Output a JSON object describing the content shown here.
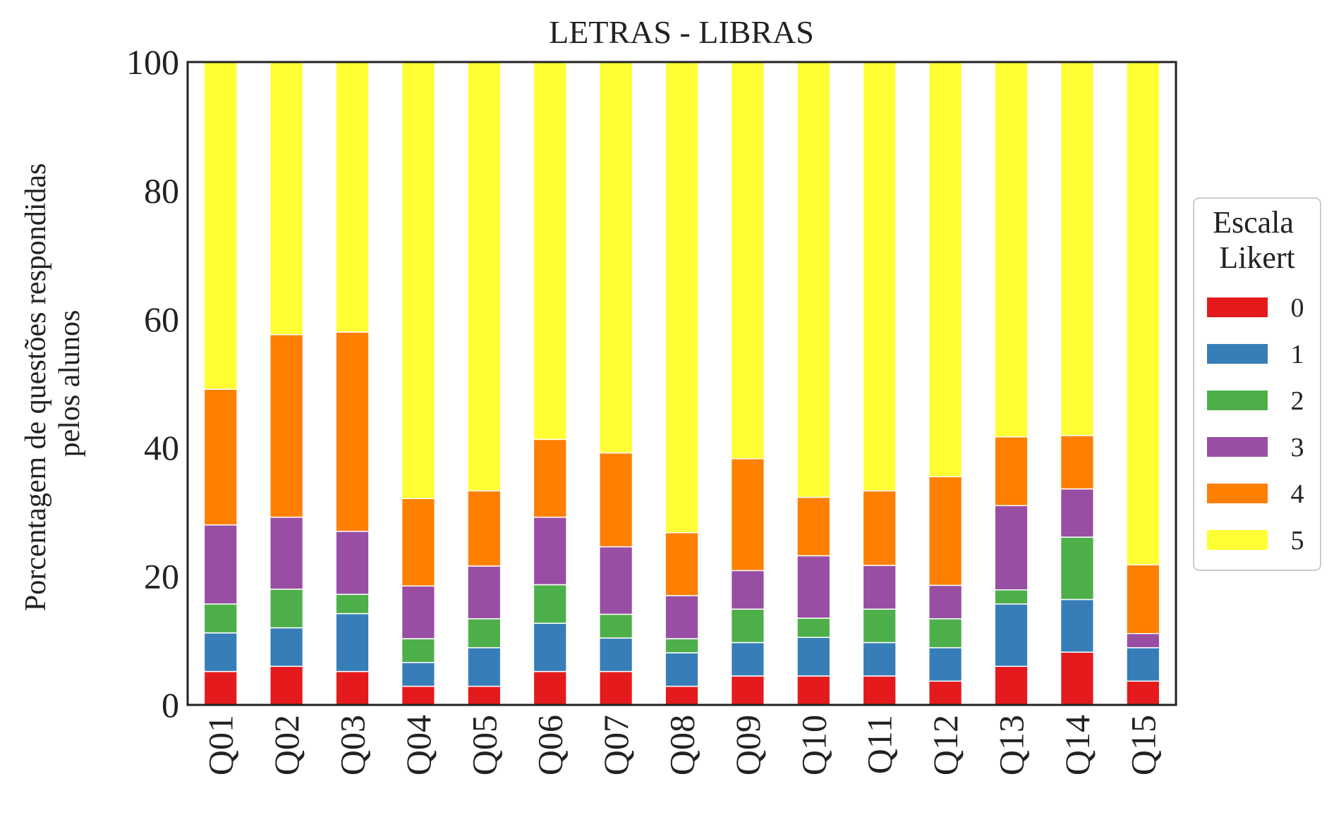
{
  "chart_data": {
    "type": "bar",
    "stacked": true,
    "title": "LETRAS - LIBRAS",
    "xlabel": "",
    "ylabel_lines": [
      "Porcentagem de questões respondidas",
      "pelos alunos"
    ],
    "ylim": [
      0,
      100
    ],
    "yticks": [
      0,
      20,
      40,
      60,
      80,
      100
    ],
    "grid": false,
    "categories": [
      "Q01",
      "Q02",
      "Q03",
      "Q04",
      "Q05",
      "Q06",
      "Q07",
      "Q08",
      "Q09",
      "Q10",
      "Q11",
      "Q12",
      "Q13",
      "Q14",
      "Q15"
    ],
    "legend": {
      "title_lines": [
        "Escala",
        "Likert"
      ],
      "placement": "right"
    },
    "series": [
      {
        "name": "0",
        "color": "#e41a1c",
        "values": [
          5.2,
          6.0,
          5.2,
          2.9,
          2.9,
          5.2,
          5.2,
          2.9,
          4.5,
          4.5,
          4.5,
          3.7,
          6.0,
          8.2,
          3.7
        ]
      },
      {
        "name": "1",
        "color": "#377eb8",
        "values": [
          6.0,
          6.0,
          9.0,
          3.7,
          6.0,
          7.5,
          5.2,
          5.2,
          5.2,
          6.0,
          5.2,
          5.2,
          9.7,
          8.2,
          5.2
        ]
      },
      {
        "name": "2",
        "color": "#4daf4a",
        "values": [
          4.5,
          6.0,
          3.0,
          3.7,
          4.5,
          6.0,
          3.7,
          2.2,
          5.2,
          3.0,
          5.2,
          4.5,
          2.2,
          9.7,
          0.0
        ]
      },
      {
        "name": "3",
        "color": "#984ea3",
        "values": [
          12.3,
          11.2,
          9.8,
          8.2,
          8.2,
          10.5,
          10.5,
          6.7,
          6.0,
          9.7,
          6.8,
          5.2,
          13.1,
          7.5,
          2.2
        ]
      },
      {
        "name": "4",
        "color": "#ff7f00",
        "values": [
          21.1,
          28.4,
          31.0,
          13.6,
          11.7,
          12.1,
          14.6,
          9.8,
          17.4,
          9.1,
          11.6,
          16.9,
          10.7,
          8.3,
          10.7
        ]
      },
      {
        "name": "5",
        "color": "#ffff33",
        "values": [
          50.9,
          42.4,
          42.0,
          67.9,
          66.7,
          58.7,
          60.8,
          73.2,
          61.7,
          67.7,
          66.7,
          64.5,
          58.3,
          58.1,
          78.2
        ]
      }
    ]
  }
}
